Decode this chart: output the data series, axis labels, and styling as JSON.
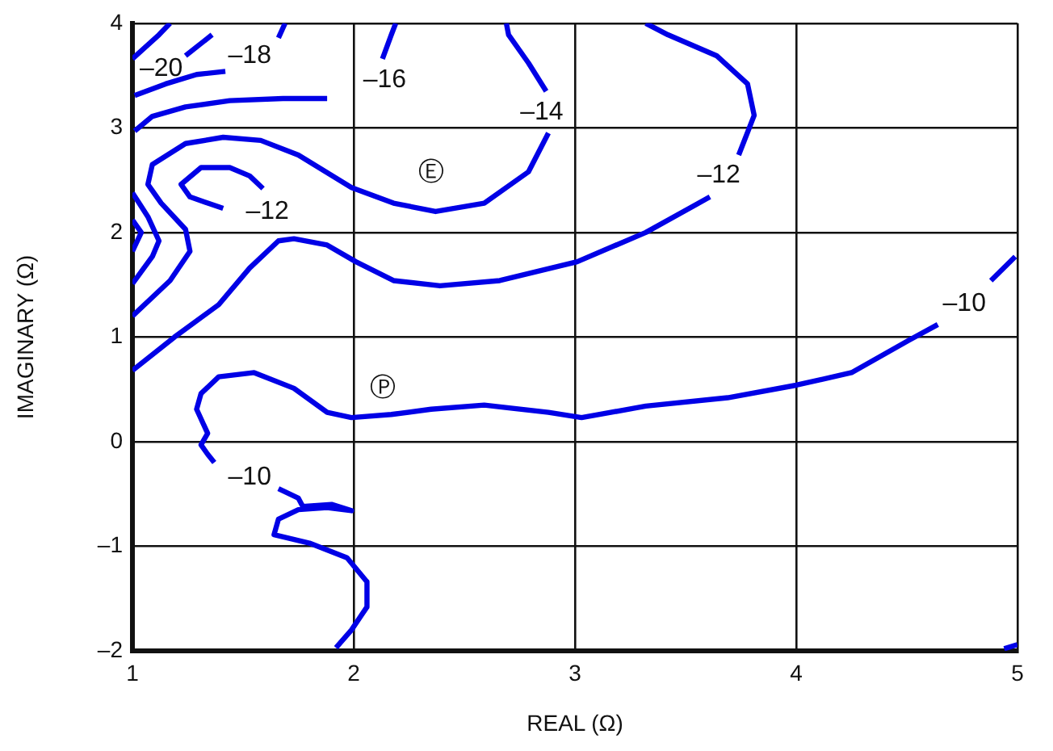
{
  "chart_data": {
    "type": "line",
    "xlabel": "REAL (Ω)",
    "ylabel": "IMAGINARY (Ω)",
    "xlim": [
      1,
      5
    ],
    "xticks": [
      1,
      2,
      3,
      4,
      5
    ],
    "ylim": [
      -2,
      4
    ],
    "yticks": [
      {
        "value": -2,
        "label": "–2"
      },
      {
        "value": -1,
        "label": "–1"
      },
      0,
      1,
      2,
      3,
      4
    ],
    "grid": true,
    "series": [
      {
        "color": "#0000e6",
        "x": [
          4.99,
          4.88
        ],
        "values": [
          1.77,
          1.54
        ]
      },
      {
        "color": "#0000e6",
        "x": [
          4.64,
          4.51,
          4.25,
          4.0,
          3.69,
          3.32,
          3.03,
          2.88,
          2.59,
          2.35,
          2.17,
          1.99,
          1.88,
          1.73,
          1.55,
          1.39,
          1.31,
          1.29,
          1.34,
          1.31,
          1.34,
          1.37
        ],
        "values": [
          1.12,
          0.97,
          0.66,
          0.54,
          0.42,
          0.34,
          0.23,
          0.28,
          0.35,
          0.31,
          0.26,
          0.23,
          0.28,
          0.51,
          0.66,
          0.62,
          0.46,
          0.31,
          0.08,
          -0.03,
          -0.12,
          -0.2
        ]
      },
      {
        "color": "#0000e6",
        "x": [
          1.66,
          1.75,
          1.77,
          1.9,
          1.99,
          1.88,
          1.75,
          1.66,
          1.64,
          1.8,
          1.97,
          2.06,
          2.06,
          1.99,
          1.92
        ],
        "values": [
          -0.45,
          -0.54,
          -0.62,
          -0.6,
          -0.66,
          -0.63,
          -0.65,
          -0.74,
          -0.89,
          -0.97,
          -1.11,
          -1.34,
          -1.58,
          -1.8,
          -1.97
        ]
      },
      {
        "color": "#0000e6",
        "x": [
          4.94,
          5.0
        ],
        "values": [
          -1.98,
          -1.94
        ]
      },
      {
        "color": "#0000e6",
        "x": [
          1.0,
          1.19,
          1.39,
          1.53,
          1.66,
          1.73,
          1.88,
          2.01,
          2.18,
          2.39,
          2.66,
          3.01,
          3.32,
          3.61
        ],
        "values": [
          0.68,
          1.0,
          1.31,
          1.66,
          1.92,
          1.94,
          1.88,
          1.72,
          1.54,
          1.49,
          1.54,
          1.72,
          2.0,
          2.34
        ]
      },
      {
        "color": "#0000e6",
        "x": [
          3.74,
          3.81,
          3.78,
          3.64,
          3.42,
          3.32
        ],
        "values": [
          2.74,
          3.12,
          3.42,
          3.69,
          3.89,
          4.0
        ]
      },
      {
        "color": "#0000e6",
        "x": [
          1.59,
          1.53,
          1.44,
          1.31,
          1.22,
          1.26,
          1.41
        ],
        "values": [
          2.42,
          2.54,
          2.62,
          2.62,
          2.46,
          2.34,
          2.23
        ]
      },
      {
        "color": "#0000e6",
        "x": [
          1.0,
          1.17,
          1.26,
          1.24,
          1.13,
          1.07,
          1.09,
          1.24,
          1.41,
          1.58,
          1.75,
          1.99,
          2.18,
          2.37,
          2.59,
          2.79,
          2.88
        ],
        "values": [
          1.2,
          1.54,
          1.82,
          2.03,
          2.28,
          2.46,
          2.65,
          2.85,
          2.91,
          2.88,
          2.74,
          2.43,
          2.28,
          2.2,
          2.28,
          2.58,
          2.95
        ]
      },
      {
        "color": "#0000e6",
        "x": [
          2.87,
          2.79,
          2.7,
          2.69
        ],
        "values": [
          3.35,
          3.62,
          3.89,
          4.0
        ]
      },
      {
        "color": "#0000e6",
        "x": [
          1.0,
          1.09,
          1.12,
          1.07,
          1.0
        ],
        "values": [
          1.51,
          1.77,
          1.92,
          2.15,
          2.38
        ]
      },
      {
        "color": "#0000e6",
        "x": [
          1.0,
          1.04,
          1.0
        ],
        "values": [
          2.12,
          2.0,
          1.82
        ]
      },
      {
        "color": "#0000e6",
        "x": [
          1.01,
          1.09,
          1.24,
          1.44,
          1.68,
          1.88
        ],
        "values": [
          2.97,
          3.11,
          3.2,
          3.26,
          3.28,
          3.28
        ]
      },
      {
        "color": "#0000e6",
        "x": [
          2.13,
          2.17,
          2.19
        ],
        "values": [
          3.66,
          3.89,
          4.0
        ]
      },
      {
        "color": "#0000e6",
        "x": [
          1.01,
          1.15,
          1.29,
          1.42
        ],
        "values": [
          3.31,
          3.42,
          3.51,
          3.54
        ]
      },
      {
        "color": "#0000e6",
        "x": [
          1.24,
          1.36
        ],
        "values": [
          3.69,
          3.89
        ]
      },
      {
        "color": "#0000e6",
        "x": [
          1.66,
          1.69
        ],
        "values": [
          3.86,
          4.0
        ]
      },
      {
        "color": "#0000e6",
        "x": [
          1.0,
          1.12,
          1.17
        ],
        "values": [
          3.66,
          3.89,
          4.0
        ]
      }
    ],
    "annotations": [
      "–20",
      "–18",
      "–16",
      "–14",
      "–12",
      "–12",
      "–10",
      "–10",
      "Ⓔ",
      "Ⓟ"
    ]
  }
}
